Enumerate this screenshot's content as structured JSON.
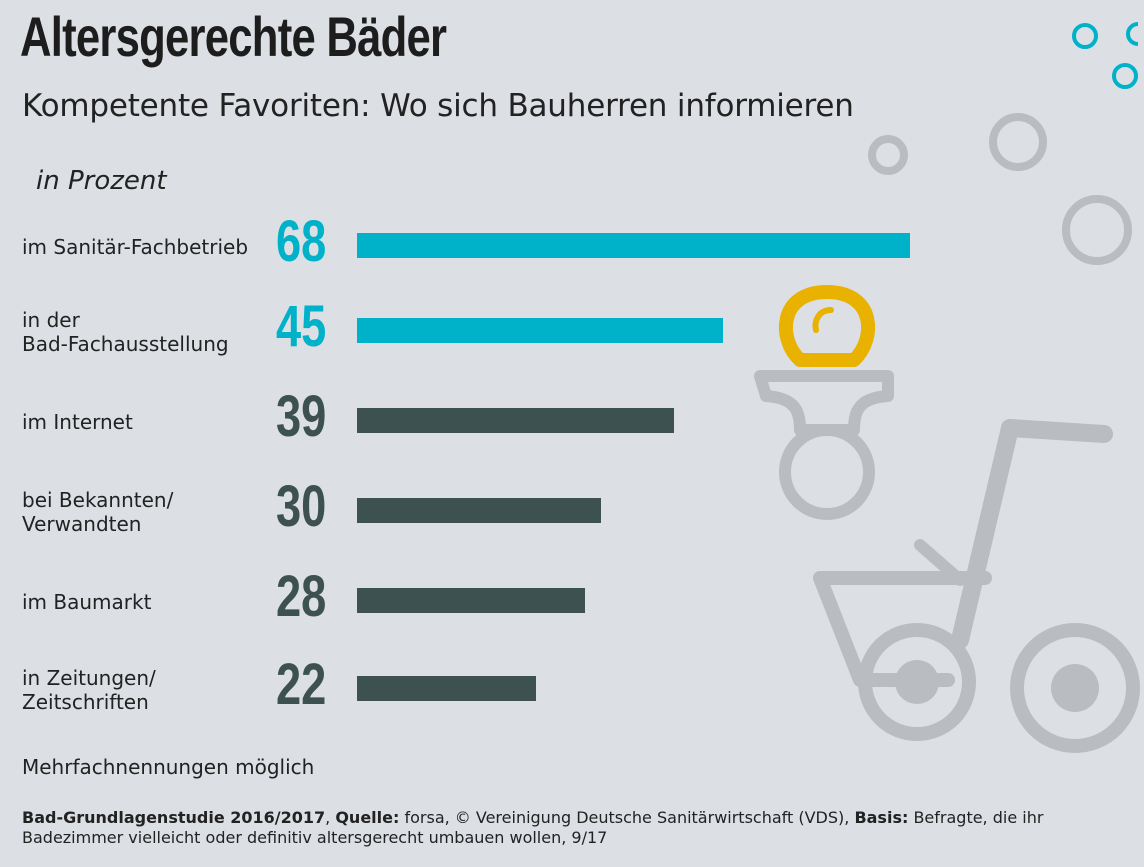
{
  "title": "Altersgerechte Bäder",
  "subtitle": "Kompetente Favoriten: Wo sich Bauherren informieren",
  "chart_data": {
    "type": "bar",
    "orientation": "horizontal",
    "unit_label": "in Prozent",
    "xlim": [
      0,
      68
    ],
    "categories": [
      [
        "im Sanitär-Fachbetrieb"
      ],
      [
        "in der",
        "Bad-Fachausstellung"
      ],
      [
        "im Internet"
      ],
      [
        "bei Bekannten/",
        "Verwandten"
      ],
      [
        "im Baumarkt"
      ],
      [
        "in Zeitungen/",
        "Zeitschriften"
      ]
    ],
    "values": [
      68,
      45,
      39,
      30,
      28,
      22
    ],
    "value_labels": [
      "68",
      "45",
      "39",
      "30",
      "28",
      "22"
    ],
    "bar_colors": [
      "#00b2c9",
      "#00b2c9",
      "#3e5151",
      "#3e5151",
      "#3e5151",
      "#3e5151"
    ],
    "label_colors": [
      "#00b2c9",
      "#00b2c9",
      "#3e5151",
      "#3e5151",
      "#3e5151",
      "#3e5151"
    ]
  },
  "note": "Mehrfachnennungen möglich",
  "source": {
    "study": "Bad-Grundlagenstudie 2016/2017",
    "sep1": ", ",
    "quelle_label": "Quelle:",
    "quelle_text": " forsa, © Vereinigung Deutsche Sanitärwirtschaft (VDS), ",
    "basis_label": "Basis:",
    "basis_text": " Befragte, die ihr Badezimmer vielleicht oder definitiv altersgerecht umbauen wollen, 9/17"
  },
  "colors": {
    "background": "#dcdfe4",
    "accent": "#00b2c9",
    "dark_bar": "#3e5151",
    "decor_gray": "#b9bcc1",
    "pacifier_yellow": "#e9b200"
  },
  "decor_icons": [
    "bubble-icons",
    "pacifier-icon",
    "tricycle-icon"
  ]
}
